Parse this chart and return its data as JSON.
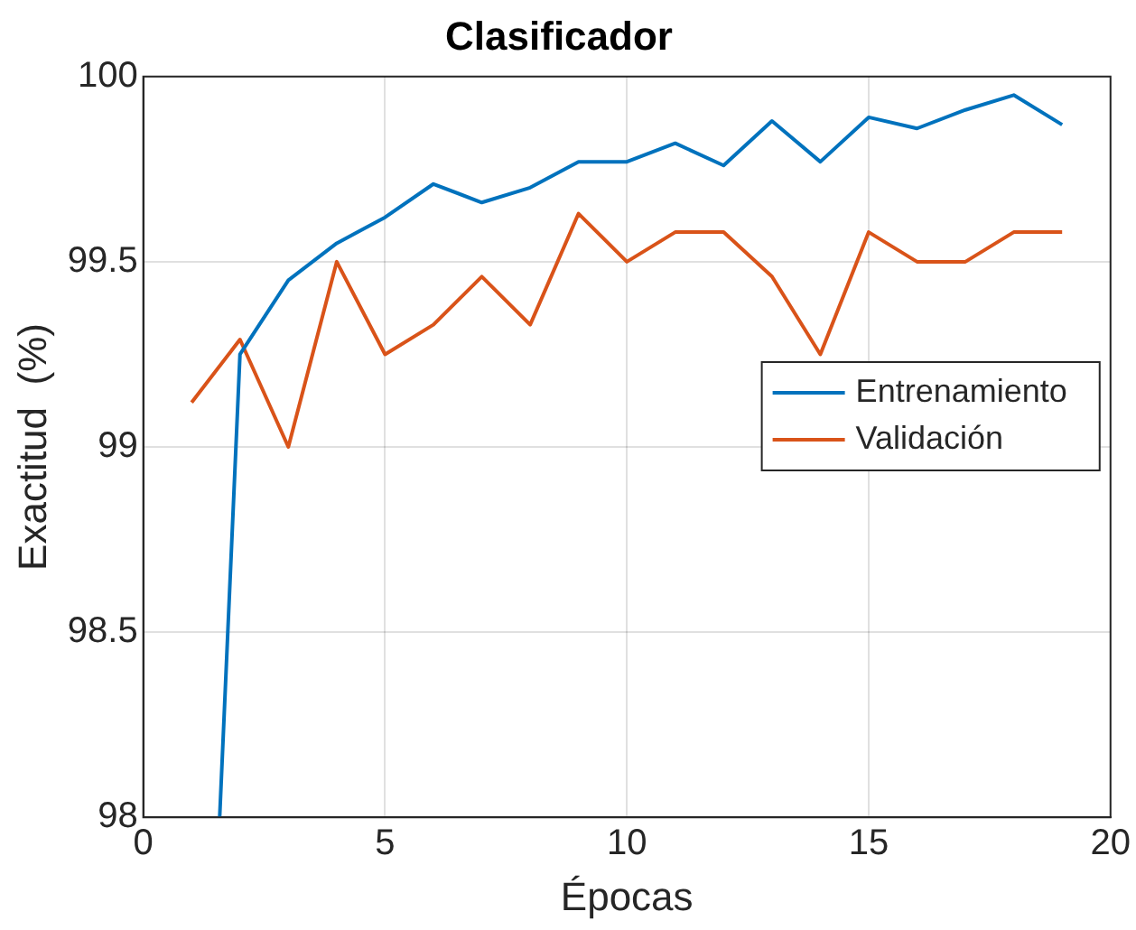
{
  "chart_data": {
    "type": "line",
    "title": "Clasificador",
    "xlabel": "Épocas",
    "ylabel": "Exactitud  (%)",
    "x": [
      1,
      2,
      3,
      4,
      5,
      6,
      7,
      8,
      9,
      10,
      11,
      12,
      13,
      14,
      15,
      16,
      17,
      18,
      19
    ],
    "series": [
      {
        "name": "Entrenamiento",
        "color": "#0072bd",
        "x": [
          1.58,
          2,
          3,
          4,
          5,
          6,
          7,
          8,
          9,
          10,
          11,
          12,
          13,
          14,
          15,
          16,
          17,
          18,
          19
        ],
        "values": [
          98,
          99.25,
          99.45,
          99.55,
          99.62,
          99.71,
          99.66,
          99.7,
          99.77,
          99.77,
          99.82,
          99.76,
          99.88,
          99.77,
          99.89,
          99.86,
          99.91,
          99.95,
          99.87
        ]
      },
      {
        "name": "Validación",
        "color": "#d95319",
        "values": [
          99.12,
          99.29,
          99.0,
          99.5,
          99.25,
          99.33,
          99.46,
          99.33,
          99.63,
          99.5,
          99.58,
          99.58,
          99.46,
          99.25,
          99.58,
          99.5,
          99.5,
          99.58,
          99.58
        ]
      }
    ],
    "xlim": [
      0,
      20
    ],
    "xticks": [
      0,
      5,
      10,
      15,
      20
    ],
    "ylim": [
      98,
      100
    ],
    "yticks": [
      98,
      98.5,
      99,
      99.5,
      100
    ],
    "grid": true,
    "legend": "right",
    "marker": "none",
    "line_style": "solid"
  }
}
